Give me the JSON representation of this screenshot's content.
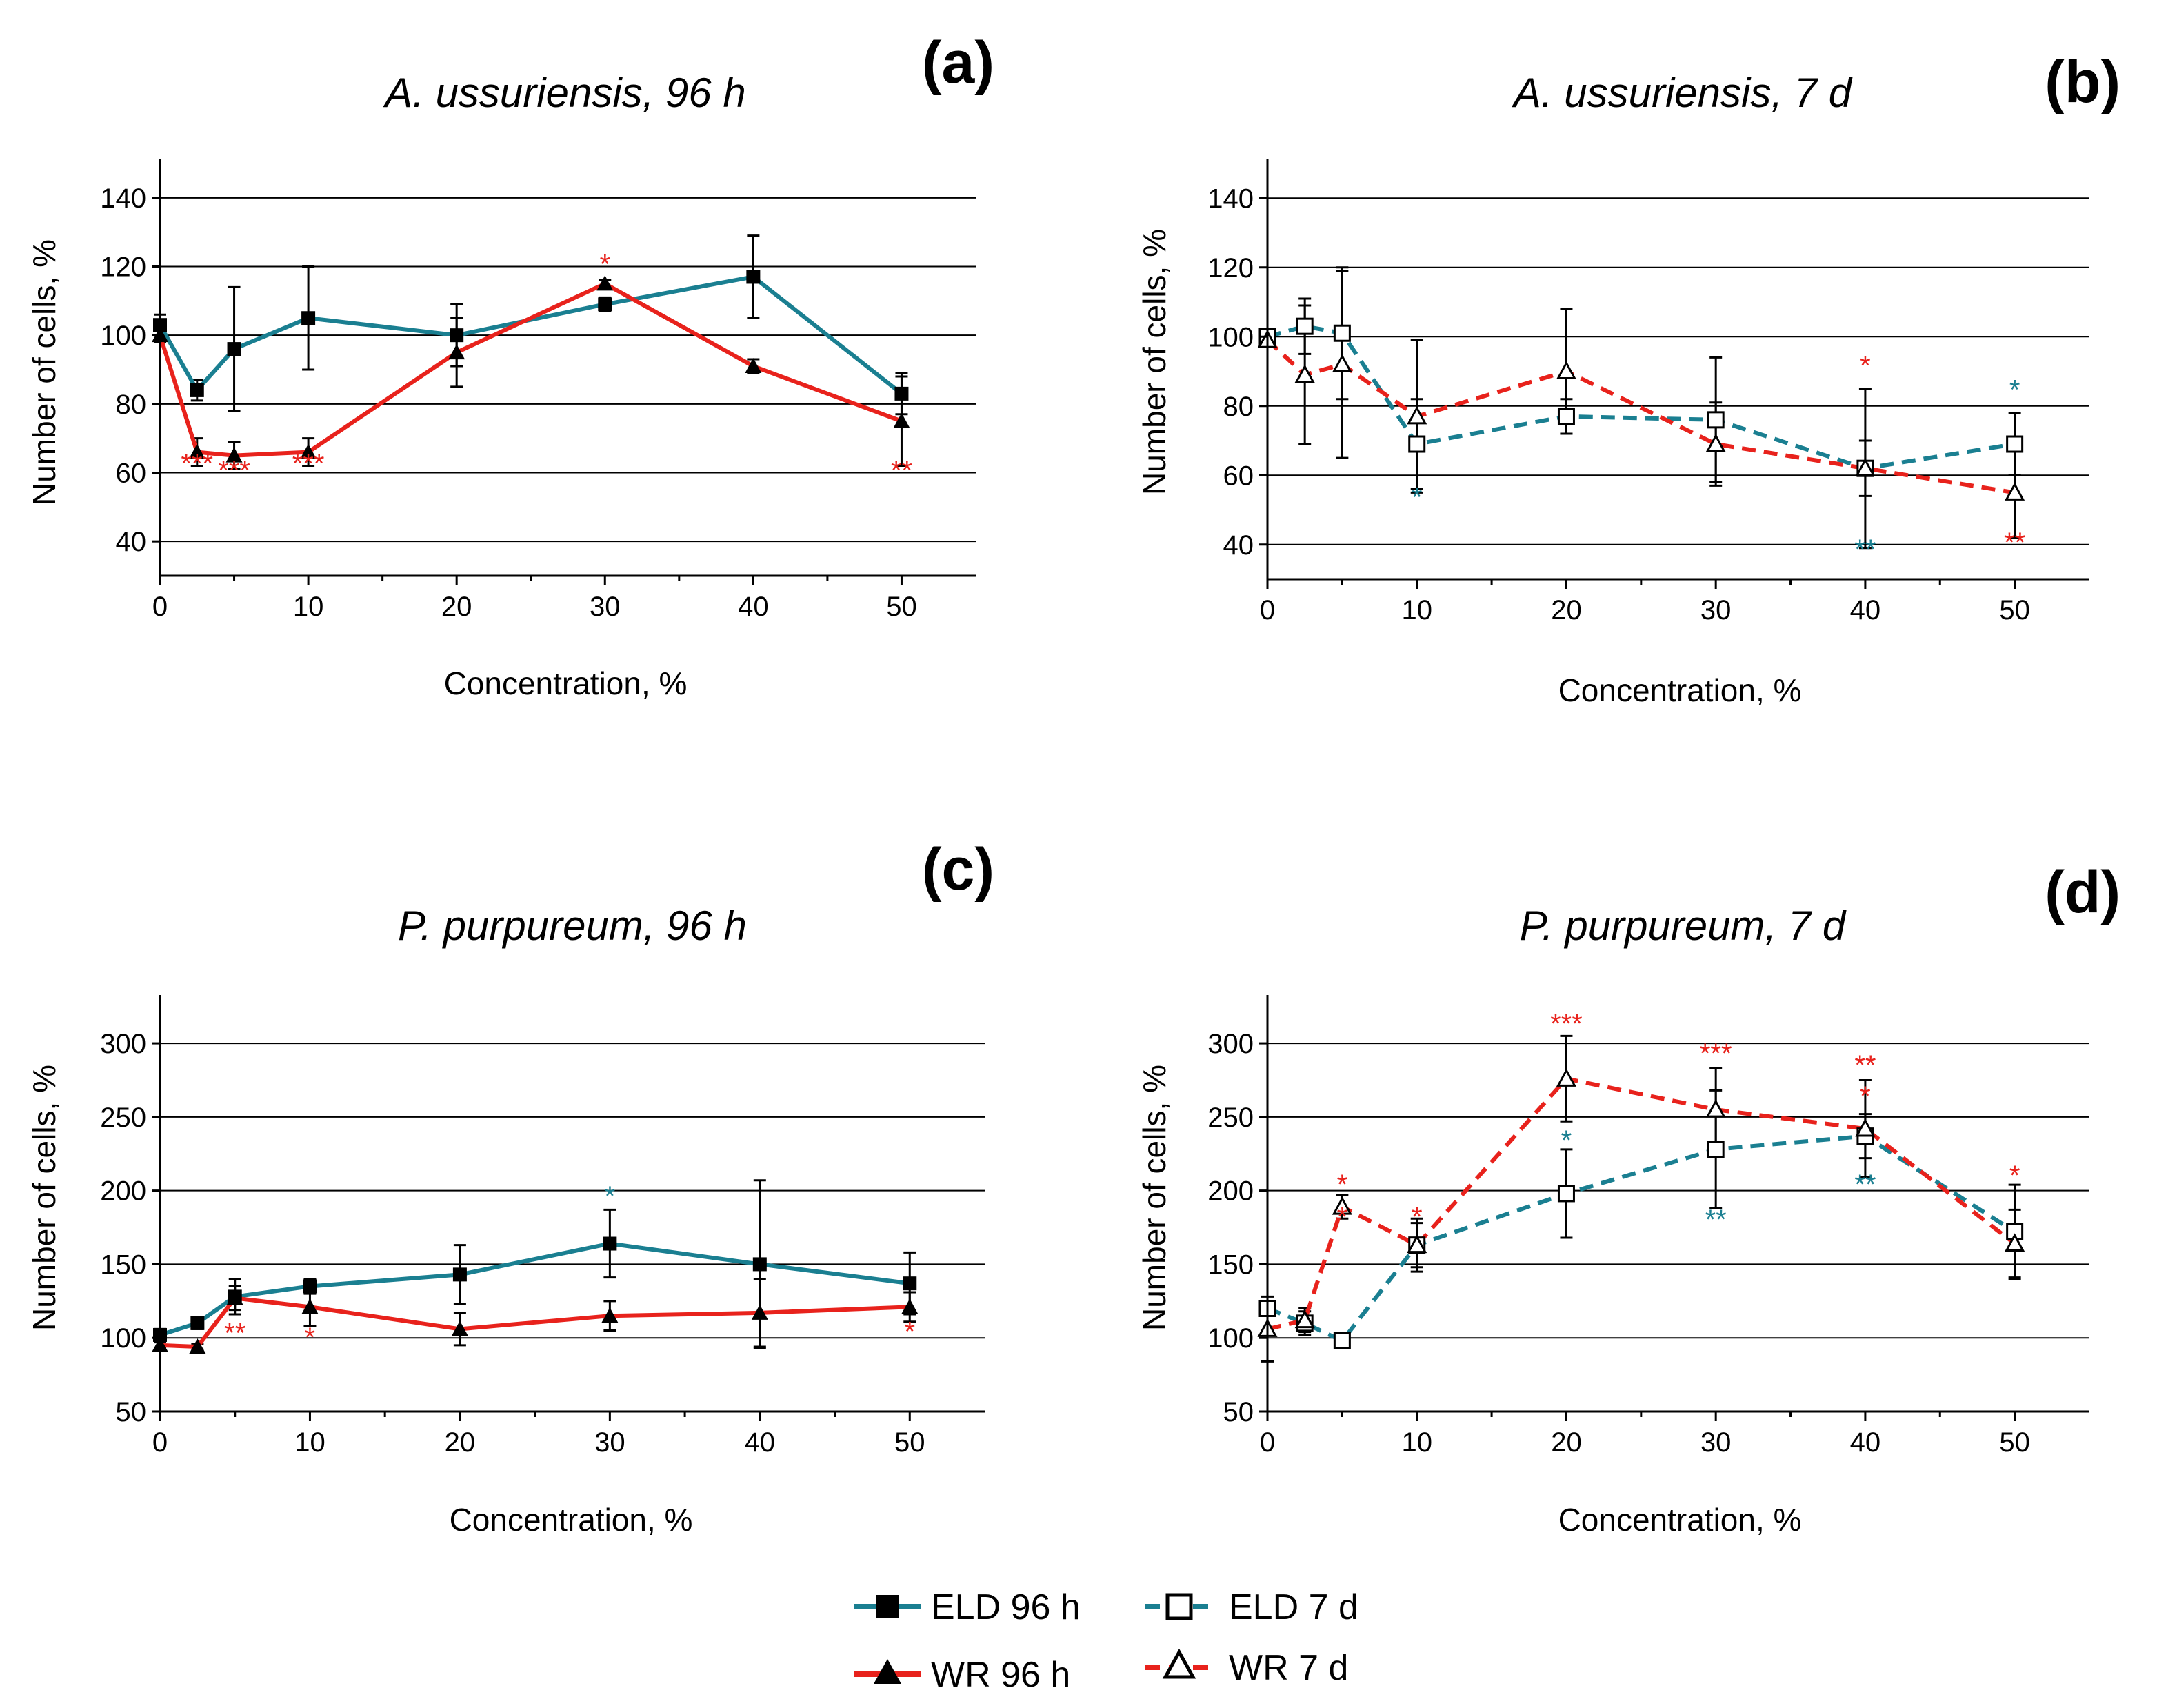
{
  "colors": {
    "eld": "#1a7f91",
    "wr": "#e8221c"
  },
  "legend": {
    "eld96": "ELD 96 h",
    "wr96": "WR 96 h",
    "eld7": "ELD 7 d",
    "wr7": "WR 7 d"
  },
  "chart_data": [
    {
      "panel": "(a)",
      "type": "line",
      "title": "A. ussuriensis, 96 h",
      "xlabel": "Concentration, %",
      "ylabel": "Number of cells, %",
      "xlim": [
        0,
        55
      ],
      "ylim": [
        30,
        150
      ],
      "xticks": [
        "0",
        "10",
        "20",
        "30",
        "40",
        "50"
      ],
      "yticks": [
        "40",
        "60",
        "80",
        "100",
        "120",
        "140"
      ],
      "grid": true,
      "series": [
        {
          "name": "ELD 96 h",
          "color": "eld",
          "dashed": false,
          "marker": "square",
          "filled": true,
          "x": [
            0,
            2.5,
            5,
            10,
            20,
            30,
            40,
            50
          ],
          "y": [
            103,
            84,
            96,
            105,
            100,
            109,
            117,
            83
          ],
          "err": [
            3,
            3,
            18,
            15,
            9,
            2,
            12,
            6
          ]
        },
        {
          "name": "WR 96 h",
          "color": "wr",
          "dashed": false,
          "marker": "triangle",
          "filled": true,
          "x": [
            0,
            2.5,
            5,
            10,
            20,
            30,
            40,
            50
          ],
          "y": [
            100,
            66,
            65,
            66,
            95,
            115,
            91,
            75
          ],
          "err": [
            2,
            4,
            4,
            4,
            10,
            1,
            2,
            13
          ]
        }
      ],
      "annotations": [
        {
          "x": 2.5,
          "y": 60,
          "text": "***",
          "color": "wr"
        },
        {
          "x": 5,
          "y": 58,
          "text": "***",
          "color": "wr"
        },
        {
          "x": 10,
          "y": 60,
          "text": "***",
          "color": "wr"
        },
        {
          "x": 30,
          "y": 118,
          "text": "*",
          "color": "wr"
        },
        {
          "x": 50,
          "y": 58,
          "text": "**",
          "color": "wr"
        }
      ]
    },
    {
      "panel": "(b)",
      "type": "line",
      "title": "A. ussuriensis, 7 d",
      "xlabel": "Concentration, %",
      "ylabel": "Number of cells, %",
      "xlim": [
        0,
        55
      ],
      "ylim": [
        30,
        150
      ],
      "xticks": [
        "0",
        "10",
        "20",
        "30",
        "40",
        "50"
      ],
      "yticks": [
        "40",
        "60",
        "80",
        "100",
        "120",
        "140"
      ],
      "grid": true,
      "series": [
        {
          "name": "ELD 7 d",
          "color": "eld",
          "dashed": true,
          "marker": "square",
          "filled": false,
          "x": [
            0,
            2.5,
            5,
            10,
            20,
            30,
            40,
            50
          ],
          "y": [
            100,
            103,
            101,
            69,
            77,
            76,
            62,
            69
          ],
          "err": [
            2,
            8,
            19,
            13,
            5,
            18,
            23,
            9
          ]
        },
        {
          "name": "WR 7 d",
          "color": "wr",
          "dashed": true,
          "marker": "triangle",
          "filled": false,
          "x": [
            0,
            2.5,
            5,
            10,
            20,
            30,
            40,
            50
          ],
          "y": [
            99,
            89,
            92,
            77,
            90,
            69,
            62,
            55
          ],
          "err": [
            2,
            20,
            27,
            22,
            18,
            12,
            8,
            13
          ]
        }
      ],
      "annotations": [
        {
          "x": 10,
          "y": 51,
          "text": "*",
          "color": "eld"
        },
        {
          "x": 40,
          "y": 89,
          "text": "*",
          "color": "wr"
        },
        {
          "x": 40,
          "y": 36,
          "text": "**",
          "color": "eld"
        },
        {
          "x": 50,
          "y": 82,
          "text": "*",
          "color": "eld"
        },
        {
          "x": 50,
          "y": 38,
          "text": "**",
          "color": "wr"
        }
      ]
    },
    {
      "panel": "(c)",
      "type": "line",
      "title": "P. purpureum, 96 h",
      "xlabel": "Concentration, %",
      "ylabel": "Number of cells, %",
      "xlim": [
        0,
        55
      ],
      "ylim": [
        50,
        330
      ],
      "xticks": [
        "0",
        "10",
        "20",
        "30",
        "40",
        "50"
      ],
      "yticks": [
        "50",
        "100",
        "150",
        "200",
        "250",
        "300"
      ],
      "grid": true,
      "series": [
        {
          "name": "ELD 96 h",
          "color": "eld",
          "dashed": false,
          "marker": "square",
          "filled": true,
          "x": [
            0,
            2.5,
            5,
            10,
            20,
            30,
            40,
            50
          ],
          "y": [
            102,
            110,
            128,
            135,
            143,
            164,
            150,
            137
          ],
          "err": [
            4,
            4,
            12,
            5,
            20,
            23,
            57,
            21
          ]
        },
        {
          "name": "WR 96 h",
          "color": "wr",
          "dashed": false,
          "marker": "triangle",
          "filled": true,
          "x": [
            0,
            2.5,
            5,
            10,
            20,
            30,
            40,
            50
          ],
          "y": [
            95,
            94,
            127,
            121,
            106,
            115,
            117,
            121
          ],
          "err": [
            2,
            2,
            8,
            13,
            11,
            10,
            23,
            10
          ]
        }
      ],
      "annotations": [
        {
          "x": 5,
          "y": 97,
          "text": "**",
          "color": "wr"
        },
        {
          "x": 10,
          "y": 94,
          "text": "*",
          "color": "wr"
        },
        {
          "x": 30,
          "y": 190,
          "text": "*",
          "color": "eld"
        },
        {
          "x": 50,
          "y": 98,
          "text": "*",
          "color": "wr"
        }
      ]
    },
    {
      "panel": "(d)",
      "type": "line",
      "title": "P. purpureum, 7 d",
      "xlabel": "Concentration, %",
      "ylabel": "Number of cells, %",
      "xlim": [
        0,
        55
      ],
      "ylim": [
        50,
        330
      ],
      "xticks": [
        "0",
        "10",
        "20",
        "30",
        "40",
        "50"
      ],
      "yticks": [
        "50",
        "100",
        "150",
        "200",
        "250",
        "300"
      ],
      "grid": true,
      "series": [
        {
          "name": "ELD 7 d",
          "color": "eld",
          "dashed": true,
          "marker": "square",
          "filled": false,
          "x": [
            0,
            2.5,
            5,
            10,
            20,
            30,
            40,
            50
          ],
          "y": [
            120,
            110,
            98,
            163,
            198,
            228,
            237,
            172
          ],
          "err": [
            3,
            8,
            3,
            15,
            30,
            40,
            15,
            32
          ]
        },
        {
          "name": "WR 7 d",
          "color": "wr",
          "dashed": true,
          "marker": "triangle",
          "filled": false,
          "x": [
            0,
            2.5,
            5,
            10,
            20,
            30,
            40,
            50
          ],
          "y": [
            106,
            112,
            189,
            163,
            276,
            255,
            242,
            164
          ],
          "err": [
            22,
            8,
            8,
            18,
            29,
            28,
            33,
            23
          ]
        }
      ],
      "annotations": [
        {
          "x": 5,
          "y": 198,
          "text": "*",
          "color": "wr"
        },
        {
          "x": 5,
          "y": 176,
          "text": "*",
          "color": "wr"
        },
        {
          "x": 10,
          "y": 176,
          "text": "*",
          "color": "wr"
        },
        {
          "x": 20,
          "y": 307,
          "text": "***",
          "color": "wr"
        },
        {
          "x": 20,
          "y": 228,
          "text": "*",
          "color": "eld"
        },
        {
          "x": 30,
          "y": 287,
          "text": "***",
          "color": "wr"
        },
        {
          "x": 30,
          "y": 174,
          "text": "**",
          "color": "eld"
        },
        {
          "x": 40,
          "y": 279,
          "text": "**",
          "color": "wr"
        },
        {
          "x": 40,
          "y": 258,
          "text": "*",
          "color": "wr"
        },
        {
          "x": 40,
          "y": 198,
          "text": "**",
          "color": "eld"
        },
        {
          "x": 50,
          "y": 204,
          "text": "*",
          "color": "wr"
        }
      ]
    }
  ]
}
